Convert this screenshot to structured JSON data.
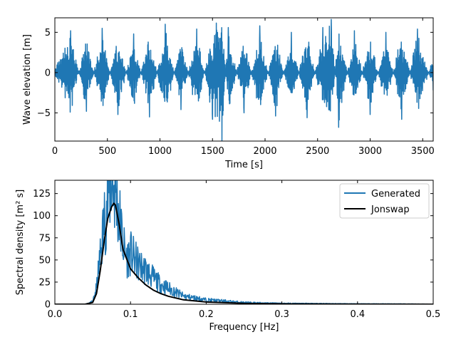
{
  "chart_data": [
    {
      "type": "line",
      "title": "",
      "xlabel": "Time [s]",
      "ylabel": "Wave elevation [m]",
      "xlim": [
        0,
        3600
      ],
      "ylim": [
        -8.5,
        6.8
      ],
      "xticks": [
        0,
        500,
        1000,
        1500,
        2000,
        2500,
        3000,
        3500
      ],
      "yticks": [
        -5,
        0,
        5
      ],
      "grid": false,
      "series": [
        {
          "name": "Wave elevation",
          "color": "#1f77b4",
          "x": [
            0,
            150,
            300,
            450,
            600,
            750,
            900,
            1050,
            1200,
            1350,
            1500,
            1590,
            1650,
            1800,
            1950,
            2100,
            2250,
            2400,
            2550,
            2630,
            2700,
            2850,
            3000,
            3150,
            3300,
            3450,
            3600
          ],
          "y": [
            0.5,
            5.2,
            -4.8,
            5.5,
            -5.2,
            4.8,
            -5.5,
            6.0,
            -4.6,
            5.4,
            -5.8,
            -8.5,
            5.6,
            -5.0,
            5.8,
            -5.4,
            5.0,
            -5.6,
            5.6,
            6.6,
            -6.8,
            5.2,
            -5.2,
            5.0,
            -5.8,
            5.4,
            -2.2
          ]
        }
      ]
    },
    {
      "type": "line",
      "title": "",
      "xlabel": "Frequency [Hz]",
      "ylabel": "Spectral density [m² s]",
      "xlim": [
        0.0,
        0.5
      ],
      "ylim": [
        0,
        140
      ],
      "xticks": [
        0.0,
        0.1,
        0.2,
        0.3,
        0.4,
        0.5
      ],
      "yticks": [
        0,
        25,
        50,
        75,
        100,
        125
      ],
      "grid": false,
      "legend": "top-right",
      "series": [
        {
          "name": "Generated",
          "color": "#1f77b4",
          "x": [
            0.0,
            0.04,
            0.05,
            0.055,
            0.06,
            0.065,
            0.07,
            0.075,
            0.08,
            0.085,
            0.09,
            0.095,
            0.1,
            0.11,
            0.12,
            0.13,
            0.14,
            0.15,
            0.17,
            0.2,
            0.25,
            0.3,
            0.4,
            0.5
          ],
          "y": [
            0,
            0,
            3,
            18,
            55,
            92,
            120,
            140,
            130,
            100,
            68,
            52,
            58,
            45,
            38,
            30,
            22,
            18,
            9,
            5,
            2,
            1,
            0.5,
            0.2
          ]
        },
        {
          "name": "Jonswap",
          "color": "#000000",
          "x": [
            0.0,
            0.04,
            0.05,
            0.055,
            0.06,
            0.065,
            0.07,
            0.075,
            0.078,
            0.08,
            0.085,
            0.09,
            0.1,
            0.11,
            0.12,
            0.13,
            0.14,
            0.15,
            0.17,
            0.2,
            0.25,
            0.3,
            0.4,
            0.5
          ],
          "y": [
            0,
            0,
            2,
            12,
            38,
            70,
            97,
            110,
            114,
            112,
            90,
            62,
            40,
            30,
            22,
            16,
            12,
            9,
            5,
            2.5,
            1,
            0.4,
            0.1,
            0.02
          ]
        }
      ]
    }
  ]
}
